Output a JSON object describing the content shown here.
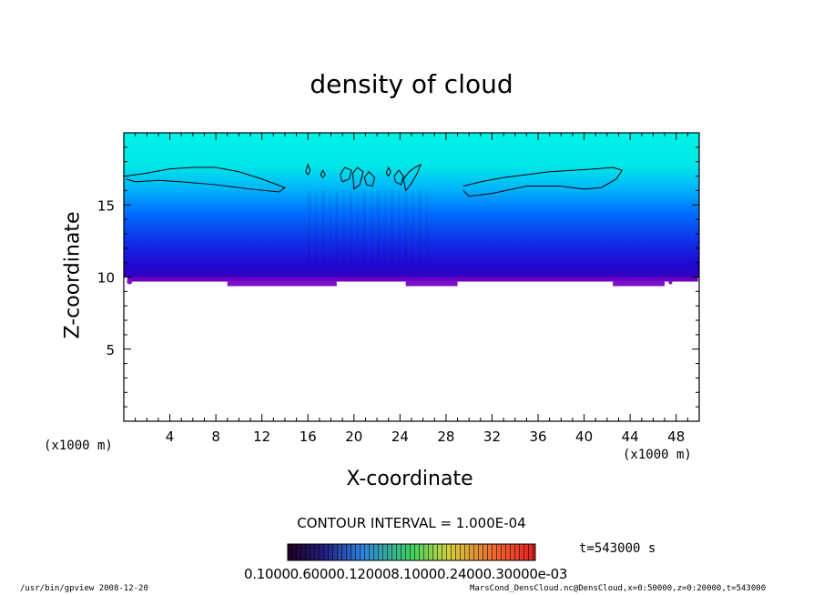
{
  "chart_data": {
    "type": "heatmap",
    "title": "density of cloud",
    "xlabel": "X-coordinate",
    "ylabel": "Z-coordinate",
    "x_unit_left": "(x1000 m)",
    "x_unit_right": "(x1000 m)",
    "xlim": [
      0,
      50
    ],
    "ylim": [
      0,
      20
    ],
    "x_ticks": [
      4,
      8,
      12,
      16,
      20,
      24,
      28,
      32,
      36,
      40,
      44,
      48
    ],
    "y_ticks": [
      5,
      10,
      15
    ],
    "cloud_bottom_z": 10,
    "contour_interval": "CONTOUR INTERVAL = 1.000E-04",
    "time": "t=543000 s",
    "colorbar_labels": "0.10000.60000.120008.10000.24000.30000e-03",
    "colors": {
      "cloud_top": "#00f0e0",
      "mid": "#0090ff",
      "low": "#1020e0",
      "base": "#6a00c0",
      "below": "#ffffff"
    }
  },
  "footer": {
    "left": "/usr/bin/gpview   2008-12-20",
    "right": "MarsCond_DensCloud.nc@DensCloud,x=0:50000,z=0:20000,t=543000"
  }
}
